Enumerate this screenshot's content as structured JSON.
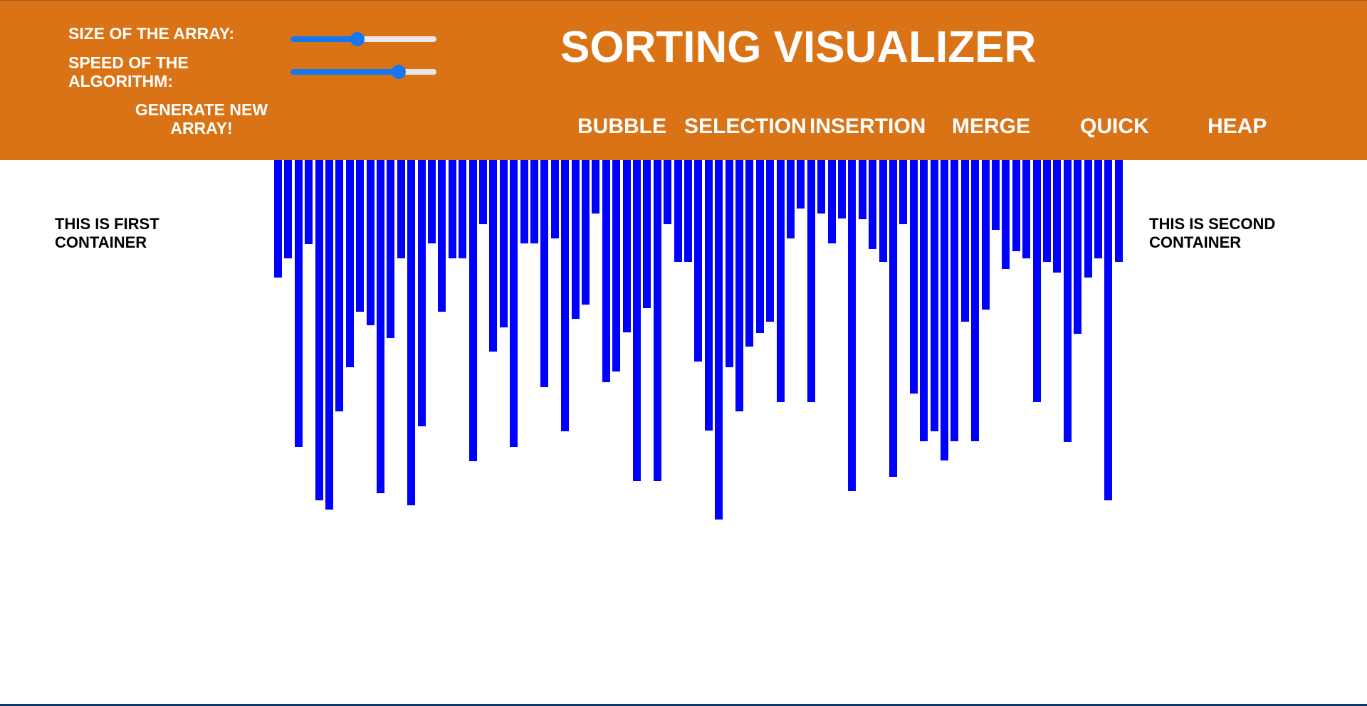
{
  "header": {
    "title": "SORTING VISUALIZER",
    "size_label": "SIZE OF THE ARRAY:",
    "speed_label": "SPEED OF THE ALGORITHM:",
    "generate_label": "GENERATE NEW ARRAY!",
    "size_value": 0.46,
    "speed_value": 0.74,
    "algorithms": [
      "BUBBLE",
      "SELECTION",
      "INSERTION",
      "MERGE",
      "QUICK",
      "HEAP"
    ]
  },
  "containers": {
    "first": "THIS IS FIRST CONTAINER",
    "second": "THIS IS SECOND CONTAINER"
  },
  "colors": {
    "header_bg": "#d97316",
    "bar": "#0000ff",
    "slider_accent": "#1677f0"
  },
  "array": [
    165,
    138,
    403,
    118,
    478,
    491,
    353,
    291,
    213,
    232,
    468,
    250,
    138,
    485,
    374,
    117,
    213,
    138,
    138,
    423,
    90,
    269,
    235,
    403,
    117,
    117,
    319,
    110,
    381,
    223,
    203,
    75,
    312,
    297,
    242,
    451,
    208,
    451,
    90,
    143,
    143,
    283,
    380,
    505,
    291,
    353,
    262,
    243,
    227,
    340,
    110,
    68,
    340,
    75,
    117,
    82,
    465,
    83,
    125,
    143,
    445,
    90,
    328,
    395,
    381,
    422,
    395,
    227,
    395,
    210,
    98,
    153,
    128,
    138,
    340,
    143,
    158,
    396,
    244,
    165,
    138,
    478,
    143
  ]
}
